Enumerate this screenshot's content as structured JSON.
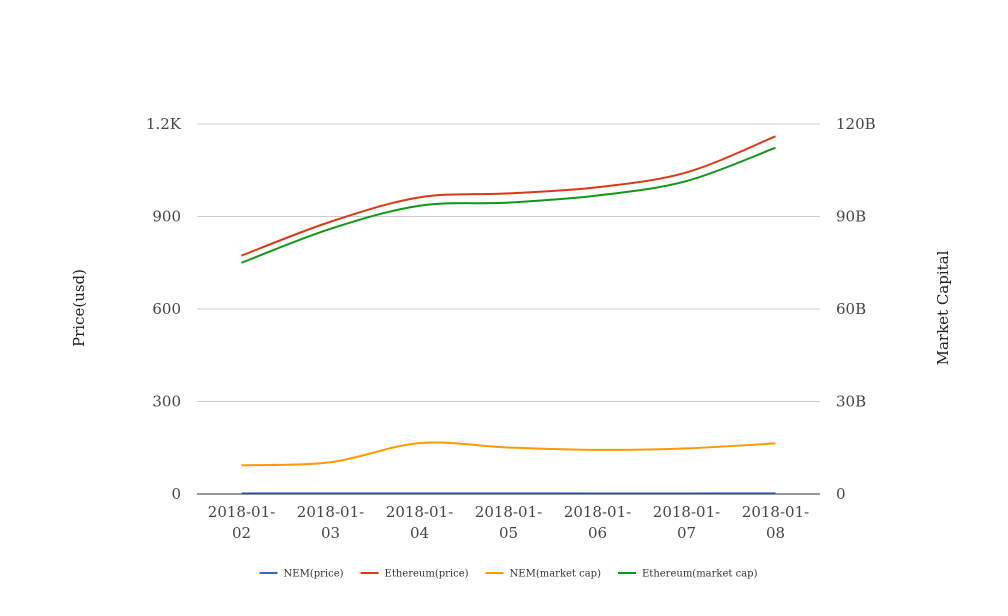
{
  "chart_data": {
    "type": "line",
    "categories": [
      "2018-01-02",
      "2018-01-03",
      "2018-01-04",
      "2018-01-05",
      "2018-01-06",
      "2018-01-07",
      "2018-01-08"
    ],
    "category_lines": [
      [
        "2018-01-",
        "02"
      ],
      [
        "2018-01-",
        "03"
      ],
      [
        "2018-01-",
        "04"
      ],
      [
        "2018-01-",
        "05"
      ],
      [
        "2018-01-",
        "06"
      ],
      [
        "2018-01-",
        "07"
      ],
      [
        "2018-01-",
        "08"
      ]
    ],
    "y_left": {
      "label": "Price(usd)",
      "range": [
        0,
        1200
      ],
      "ticks": [
        0,
        300,
        600,
        900,
        1200
      ],
      "tick_labels": [
        "0",
        "300",
        "600",
        "900",
        "1.2K"
      ]
    },
    "y_right": {
      "label": "Market Capital",
      "range": [
        0,
        120000000000
      ],
      "ticks": [
        0,
        30000000000,
        60000000000,
        90000000000,
        120000000000
      ],
      "tick_labels": [
        "0",
        "30B",
        "60B",
        "90B",
        "120B"
      ]
    },
    "grid": true,
    "legend_position": "bottom",
    "series": [
      {
        "name": "NEM(price)",
        "axis": "left",
        "color": "#3366cc",
        "values": [
          1.8,
          1.9,
          2.1,
          1.9,
          1.8,
          1.8,
          1.9
        ]
      },
      {
        "name": "Ethereum(price)",
        "axis": "left",
        "color": "#dc3912",
        "values": [
          773,
          883,
          962,
          975,
          995,
          1043,
          1160
        ]
      },
      {
        "name": "NEM(market cap)",
        "axis": "right",
        "color": "#ff9900",
        "values": [
          9300000000,
          10300000000,
          16500000000,
          15100000000,
          14300000000,
          14800000000,
          16400000000
        ]
      },
      {
        "name": "Ethereum(market cap)",
        "axis": "right",
        "color": "#109618",
        "values": [
          75000000000,
          86000000000,
          93500000000,
          94500000000,
          96800000000,
          101500000000,
          112300000000
        ]
      }
    ]
  }
}
